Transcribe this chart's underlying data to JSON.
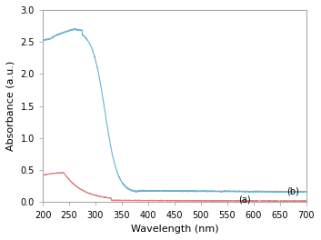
{
  "title": "",
  "xlabel": "Wavelength (nm)",
  "ylabel": "Absorbance (a.u.)",
  "xlim": [
    200,
    700
  ],
  "ylim": [
    0,
    3
  ],
  "yticks": [
    0,
    0.5,
    1,
    1.5,
    2,
    2.5,
    3
  ],
  "xticks": [
    200,
    250,
    300,
    350,
    400,
    450,
    500,
    550,
    600,
    650,
    700
  ],
  "color_a": "#d9807a",
  "color_b": "#6db3cc",
  "label_a": "(a)",
  "label_b": "(b)",
  "background": "#ffffff",
  "spine_color": "#aaaaaa"
}
